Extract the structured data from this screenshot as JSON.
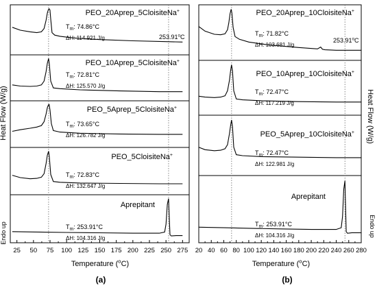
{
  "figure": {
    "panel_a_label": "(a)",
    "panel_b_label": "(b)"
  },
  "chart_data": [
    {
      "type": "line",
      "panel": "(a)",
      "xlabel_parts": [
        "Temperature (",
        "o",
        "C)"
      ],
      "ylabel": "Heat Flow (W/g)",
      "endo_label": "Endo up",
      "xlim": [
        15,
        285
      ],
      "xticks": [
        25,
        50,
        75,
        100,
        125,
        150,
        175,
        200,
        225,
        250,
        275
      ],
      "ref_lines_x": [
        72.8,
        253.91
      ],
      "ref_label_parts": [
        "253.91",
        "o",
        "C"
      ],
      "series": [
        {
          "name": "PEO_20Aprep_5CloisiteNa",
          "tm": "74.86°C",
          "dh": "114.921 J/g",
          "x": [
            18,
            30,
            45,
            55,
            62,
            66,
            69,
            71,
            72.5,
            73.5,
            74.86,
            76,
            78,
            82,
            90,
            110,
            150,
            200,
            250,
            275
          ],
          "y": [
            0.55,
            0.48,
            0.44,
            0.42,
            0.44,
            0.52,
            0.72,
            0.9,
            0.98,
            1.0,
            0.97,
            0.75,
            0.42,
            0.36,
            0.33,
            0.29,
            0.25,
            0.22,
            0.2,
            0.19
          ]
        },
        {
          "name": "PEO_10Aprep_5CloisiteNa",
          "tm": "72.81°C",
          "dh": "125.570 J/g",
          "x": [
            18,
            30,
            45,
            55,
            62,
            66,
            69,
            71,
            72.81,
            74,
            76,
            80,
            90,
            120,
            180,
            240,
            275
          ],
          "y": [
            0.3,
            0.27,
            0.26,
            0.27,
            0.3,
            0.4,
            0.65,
            0.88,
            1.0,
            0.85,
            0.4,
            0.22,
            0.2,
            0.17,
            0.14,
            0.12,
            0.12
          ]
        },
        {
          "name": "PEO_5Aprep_5CloisiteNa",
          "tm": "73.65°C",
          "dh": "126.782 J/g",
          "x": [
            18,
            30,
            45,
            55,
            62,
            66,
            69,
            71,
            72.5,
            73.65,
            75,
            77,
            80,
            90,
            120,
            180,
            240,
            275
          ],
          "y": [
            0.3,
            0.34,
            0.38,
            0.41,
            0.45,
            0.55,
            0.75,
            0.92,
            0.99,
            1.0,
            0.85,
            0.5,
            0.32,
            0.28,
            0.25,
            0.23,
            0.22,
            0.22
          ]
        },
        {
          "name": "PEO_5CloisiteNa",
          "tm": "72.83°C",
          "dh": "132.647 J/g",
          "x": [
            18,
            30,
            45,
            55,
            62,
            66,
            69,
            71,
            72.83,
            74,
            76,
            80,
            90,
            120,
            180,
            240,
            275
          ],
          "y": [
            0.38,
            0.32,
            0.29,
            0.3,
            0.33,
            0.42,
            0.68,
            0.9,
            1.0,
            0.85,
            0.4,
            0.22,
            0.2,
            0.18,
            0.17,
            0.16,
            0.16
          ]
        },
        {
          "name": "Aprepitant",
          "tm": "253.91°C",
          "dh": "104.316 J/g",
          "x": [
            18,
            60,
            100,
            150,
            200,
            240,
            248,
            250,
            252,
            253.91,
            255,
            256,
            258,
            265,
            275
          ],
          "y": [
            0.16,
            0.15,
            0.14,
            0.13,
            0.12,
            0.12,
            0.15,
            0.35,
            0.85,
            1.0,
            0.5,
            0.08,
            0.05,
            0.06,
            0.06
          ]
        }
      ]
    },
    {
      "type": "line",
      "panel": "(b)",
      "xlabel_parts": [
        "Temperature (",
        "o",
        "C)"
      ],
      "ylabel": "Heat Flow (W/g)",
      "endo_label": "Endo up",
      "xlim": [
        20,
        280
      ],
      "xticks": [
        20,
        40,
        60,
        80,
        100,
        120,
        140,
        160,
        180,
        200,
        220,
        240,
        260,
        280
      ],
      "ref_lines_x": [
        72.5,
        253.91
      ],
      "ref_label_parts": [
        "253.91",
        "o",
        "C"
      ],
      "series": [
        {
          "name": "PEO_20Aprep_10CloisiteNa",
          "tm": "71.82°C",
          "dh": "103.681 J/g",
          "x": [
            20,
            30,
            45,
            55,
            62,
            66,
            68,
            70,
            71.82,
            73,
            75,
            78,
            85,
            100,
            130,
            180,
            210,
            215,
            218,
            222,
            240,
            280
          ],
          "y": [
            0.62,
            0.52,
            0.45,
            0.44,
            0.46,
            0.55,
            0.7,
            0.9,
            1.0,
            0.92,
            0.6,
            0.4,
            0.34,
            0.28,
            0.22,
            0.16,
            0.13,
            0.17,
            0.12,
            0.11,
            0.1,
            0.1
          ]
        },
        {
          "name": "PEO_10Aprep_10CloisiteNa",
          "tm": "72.47°C",
          "dh": "117.219 J/g",
          "x": [
            20,
            30,
            45,
            55,
            62,
            66,
            69,
            71,
            72.47,
            74,
            76,
            80,
            90,
            120,
            180,
            240,
            280
          ],
          "y": [
            0.3,
            0.28,
            0.27,
            0.28,
            0.31,
            0.42,
            0.65,
            0.88,
            1.0,
            0.86,
            0.42,
            0.24,
            0.22,
            0.2,
            0.18,
            0.17,
            0.17
          ]
        },
        {
          "name": "PEO_5Aprep_10CloisiteNa",
          "tm": "72.47°C",
          "dh": "122.981 J/g",
          "x": [
            20,
            30,
            45,
            55,
            62,
            66,
            69,
            71,
            72.47,
            74,
            76,
            80,
            90,
            120,
            180,
            240,
            280
          ],
          "y": [
            0.45,
            0.4,
            0.38,
            0.39,
            0.42,
            0.5,
            0.72,
            0.9,
            1.0,
            0.86,
            0.45,
            0.3,
            0.28,
            0.26,
            0.25,
            0.24,
            0.24
          ]
        },
        {
          "name": "Aprepitant",
          "tm": "253.91°C",
          "dh": "104.316 J/g",
          "x": [
            20,
            60,
            100,
            150,
            200,
            240,
            248,
            250,
            252,
            253.91,
            255,
            256,
            258,
            265,
            280
          ],
          "y": [
            0.16,
            0.15,
            0.14,
            0.13,
            0.12,
            0.12,
            0.15,
            0.35,
            0.85,
            1.0,
            0.5,
            0.08,
            0.05,
            0.06,
            0.06
          ]
        }
      ]
    }
  ]
}
